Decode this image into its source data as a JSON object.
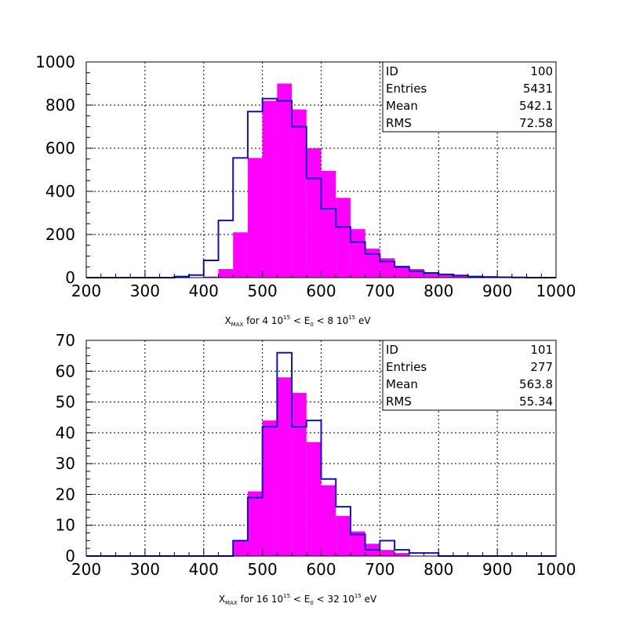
{
  "chart_data": [
    {
      "type": "histogram",
      "xlim": [
        200,
        1000
      ],
      "ylim": [
        0,
        1000
      ],
      "xticks": [
        200,
        300,
        400,
        500,
        600,
        700,
        800,
        900,
        1000
      ],
      "yticks": [
        0,
        200,
        400,
        600,
        800,
        1000
      ],
      "grid": true,
      "bin_width": 25,
      "xlabel": {
        "prefix": "X",
        "prefix_sub": "MAX",
        "text1": " for 4 10",
        "sup1": "15",
        "text2": " < E",
        "sub2": "0",
        "text3": " < 8 10",
        "sup3": "15",
        "text4": " eV"
      },
      "stats": [
        {
          "label": "ID",
          "value": "100"
        },
        {
          "label": "Entries",
          "value": "5431"
        },
        {
          "label": "Mean",
          "value": "542.1"
        },
        {
          "label": "RMS",
          "value": "72.58"
        }
      ],
      "filled_color": "#ff00ff",
      "outline_color": "#1010c0",
      "filled_series": {
        "bin_edges_start": 350,
        "values": [
          0,
          0,
          5,
          40,
          210,
          555,
          820,
          900,
          780,
          600,
          495,
          370,
          225,
          135,
          90,
          55,
          40,
          25,
          18,
          12,
          8,
          5,
          3,
          2,
          1,
          0
        ]
      },
      "outline_series": {
        "bin_edges_start": 350,
        "values": [
          5,
          12,
          80,
          265,
          555,
          770,
          830,
          820,
          700,
          460,
          320,
          235,
          165,
          110,
          75,
          50,
          30,
          22,
          15,
          10,
          5,
          3,
          2,
          1,
          0,
          0
        ]
      }
    },
    {
      "type": "histogram",
      "xlim": [
        200,
        1000
      ],
      "ylim": [
        0,
        70
      ],
      "xticks": [
        200,
        300,
        400,
        500,
        600,
        700,
        800,
        900,
        1000
      ],
      "yticks": [
        0,
        10,
        20,
        30,
        40,
        50,
        60,
        70
      ],
      "grid": true,
      "bin_width": 25,
      "xlabel": {
        "prefix": "X",
        "prefix_sub": "MAX",
        "text1": " for 16 10",
        "sup1": "15",
        "text2": " < E",
        "sub2": "0",
        "text3": " < 32 10",
        "sup3": "15",
        "text4": " eV"
      },
      "stats": [
        {
          "label": "ID",
          "value": "101"
        },
        {
          "label": "Entries",
          "value": "277"
        },
        {
          "label": "Mean",
          "value": "563.8"
        },
        {
          "label": "RMS",
          "value": "55.34"
        }
      ],
      "filled_color": "#ff00ff",
      "outline_color": "#1010c0",
      "filled_series": {
        "bin_edges_start": 450,
        "values": [
          5,
          21,
          44,
          58,
          53,
          37,
          23,
          13,
          8,
          4,
          2,
          1,
          0,
          0
        ]
      },
      "outline_series": {
        "bin_edges_start": 450,
        "values": [
          5,
          19,
          42,
          66,
          42,
          44,
          25,
          16,
          7,
          2,
          5,
          2,
          1,
          1
        ]
      }
    }
  ]
}
